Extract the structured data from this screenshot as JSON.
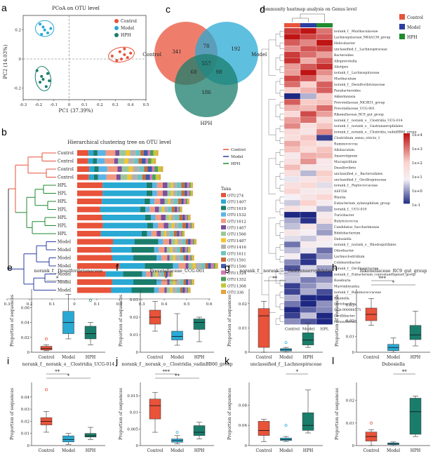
{
  "colors": {
    "Control": "#e8533a",
    "Model": "#29a9d4",
    "HPH": "#1a7d6b"
  },
  "panels": {
    "a": {
      "label": "a",
      "title": "PCoA on OTU level",
      "xlabel": "PC1 (37.39%)",
      "ylabel": "PC2 (14.03%)",
      "legend": [
        "Control",
        "Model",
        "HPH"
      ],
      "xticks": [
        "-0.3",
        "-0.2",
        "-0.1",
        "0",
        "0.1",
        "0.2",
        "0.3",
        "0.4",
        "0.5"
      ],
      "yticks": [
        "0.2",
        "0",
        "-0.2"
      ],
      "points": {
        "Control": [
          [
            0.28,
            0.02
          ],
          [
            0.33,
            0.05
          ],
          [
            0.36,
            0.03
          ],
          [
            0.31,
            -0.01
          ],
          [
            0.38,
            0.01
          ],
          [
            0.34,
            0.0
          ],
          [
            0.4,
            0.04
          ],
          [
            0.36,
            0.07
          ]
        ],
        "Model": [
          [
            -0.19,
            0.24
          ],
          [
            -0.16,
            0.2
          ],
          [
            -0.14,
            0.18
          ],
          [
            -0.18,
            0.17
          ],
          [
            -0.12,
            0.21
          ],
          [
            -0.17,
            0.22
          ]
        ],
        "HPH": [
          [
            -0.21,
            -0.08
          ],
          [
            -0.18,
            -0.12
          ],
          [
            -0.14,
            -0.1
          ],
          [
            -0.19,
            -0.16
          ],
          [
            -0.15,
            -0.19
          ],
          [
            -0.17,
            -0.14
          ],
          [
            -0.13,
            -0.15
          ]
        ]
      }
    },
    "b": {
      "label": "b",
      "title": "Hierarchical clustering tree on OTU level",
      "samples": [
        "Control",
        "Control",
        "Control",
        "Control",
        "HPL",
        "HPL",
        "HPL",
        "HPL",
        "HPL",
        "HPL",
        "HPL",
        "Model",
        "Model",
        "Model",
        "Model",
        "Model",
        "Model",
        "Model"
      ],
      "legend_groups": [
        "Control",
        "Model",
        "HPH"
      ],
      "taxa_title": "Taxa",
      "taxa": [
        "OTU274",
        "OTU1407",
        "OTU1619",
        "OTU1532",
        "OTU1612",
        "OTU1467",
        "OTU1566",
        "OTU1487",
        "OTU1416",
        "OTU1611",
        "OTU1591",
        "OTU1590",
        "OTU1324",
        "OTU1352",
        "OTU1368",
        "OTU336"
      ],
      "taxa_colors": [
        "#e8533a",
        "#29a9d4",
        "#1a7d6b",
        "#5ab4e8",
        "#f09a82",
        "#7b4fa0",
        "#9ac79a",
        "#f4c430",
        "#b0b0b0",
        "#6fc3c0",
        "#c76b3a",
        "#3f5aa8",
        "#d67ab1",
        "#4b9e5c",
        "#c2c73d",
        "#e6a23c"
      ],
      "xticks": [
        "0.3",
        "0.2",
        "0.1",
        "0",
        "0.1",
        "0.2",
        "0.3",
        "0.4",
        "0.5",
        "0.6"
      ]
    },
    "c": {
      "label": "c",
      "sets": [
        "Control",
        "Model",
        "HPH"
      ],
      "only_control": 341,
      "only_model": 192,
      "only_hph": 186,
      "control_model": 78,
      "control_hph": 68,
      "model_hph": 98,
      "all": 557
    },
    "d": {
      "label": "d",
      "title": "Community heatmap analysis on Genus level",
      "groups": [
        "Control",
        "Model",
        "HPL"
      ],
      "legend_groups": [
        "Control",
        "Model",
        "HPH"
      ],
      "scale": [
        "1e+4",
        "1e+3",
        "1e+2",
        "1e+1",
        "1e+0",
        "1e-1"
      ],
      "genera": [
        "norank_f__Muribaculaceae",
        "Lachnospiraceae_NK4A136_group",
        "Helicobacter",
        "unclassified_f__Lachnospiraceae",
        "Bacteroides",
        "Alloprevotella",
        "Alistipes",
        "norank_f__Lachnospiraceae",
        "Muribaculum",
        "norank_f__Desulfovibrionaceae",
        "Parabacteroides",
        "Akkermansia",
        "Prevotellaceae_NK3B31_group",
        "Prevotellaceae_UCG-001",
        "Rikenellaceae_RC9_gut_group",
        "norank_f__norank_o__Clostridia_UCG-014",
        "norank_f__norank_o__Gastranaerophilales",
        "norank_f__norank_o__Clostridia_vadinBB60_group",
        "Clostridium_sensu_stricto_1",
        "Ruminococcus",
        "Allobaculum",
        "Anaerotignum",
        "Mucispirillum",
        "Desulfovibrio",
        "unclassified_o__Bacteroidales",
        "unclassified_f__Oscillospiraceae",
        "norank_f__Peptococcaceae",
        "ASF356",
        "Blautia",
        "Eubacterium_xylanophilum_group",
        "norank_f__UCG-010",
        "Turicibacter",
        "Butyricicoccus",
        "Candidatus_Saccharimonas",
        "Bifidobacterium",
        "Dubosiella",
        "norank_f__norank_o__Rhodospirillales",
        "Odoribacter",
        "Lachnoclostridium",
        "Colidextribacter",
        "norank_f__Oscillospiraceae",
        "norank_f__Eubacterium_coprostanoligenes_group",
        "Roseburia",
        "Marvinbryantia",
        "norank_f__Ruminococcaceae",
        "Rikenella",
        "Lactobacillus",
        "GCA-900066575",
        "Oscillibacter",
        "Parasutterella"
      ]
    },
    "boxes": [
      {
        "label": "e",
        "title": "norank_f__Desulfovibrionaceae",
        "ylabel": "Proportion of sequences",
        "yticks": [
          "0",
          "0.02",
          "0.04",
          "0.06"
        ],
        "ymax": 0.085,
        "stats": [
          {
            "group": "Control",
            "min": 0.002,
            "q1": 0.003,
            "med": 0.005,
            "q3": 0.008,
            "max": 0.01,
            "out": [
              0.018
            ]
          },
          {
            "group": "Model",
            "min": 0.018,
            "q1": 0.025,
            "med": 0.04,
            "q3": 0.055,
            "max": 0.078,
            "out": []
          },
          {
            "group": "HPH",
            "min": 0.01,
            "q1": 0.018,
            "med": 0.025,
            "q3": 0.035,
            "max": 0.04,
            "out": [
              0.07
            ]
          }
        ],
        "sig": [
          {
            "a": 0,
            "b": 1,
            "text": "*"
          }
        ]
      },
      {
        "label": "f",
        "title": "Prevotellaceae_UCG-001",
        "ylabel": "Proportion of sequences",
        "yticks": [
          "0",
          "0.01",
          "0.02",
          "0.03"
        ],
        "ymax": 0.036,
        "stats": [
          {
            "group": "Control",
            "min": 0.012,
            "q1": 0.016,
            "med": 0.02,
            "q3": 0.024,
            "max": 0.029,
            "out": []
          },
          {
            "group": "Model",
            "min": 0.004,
            "q1": 0.007,
            "med": 0.009,
            "q3": 0.012,
            "max": 0.022,
            "out": []
          },
          {
            "group": "HPH",
            "min": 0.006,
            "q1": 0.013,
            "med": 0.017,
            "q3": 0.019,
            "max": 0.02,
            "out": []
          }
        ],
        "sig": [
          {
            "a": 0,
            "b": 1,
            "text": "*"
          }
        ]
      },
      {
        "label": "g",
        "title": "norank_f__norank_o__Gastranaerophilales",
        "ylabel": "Proportion of sequences",
        "yticks": [
          "0",
          "0.01",
          "0.02"
        ],
        "ymax": 0.026,
        "stats": [
          {
            "group": "Control",
            "min": 0.0,
            "q1": 0.002,
            "med": 0.015,
            "q3": 0.018,
            "max": 0.021,
            "out": []
          },
          {
            "group": "Model",
            "min": 0.0,
            "q1": 0.0005,
            "med": 0.001,
            "q3": 0.0015,
            "max": 0.002,
            "out": [
              0.004
            ]
          },
          {
            "group": "HPH",
            "min": 0.002,
            "q1": 0.003,
            "med": 0.005,
            "q3": 0.008,
            "max": 0.012,
            "out": []
          }
        ],
        "sig": [
          {
            "a": 0,
            "b": 1,
            "text": "**"
          }
        ]
      },
      {
        "label": "h",
        "title": "Rikenellaceae_RC9_gut_group",
        "ylabel": "Proportion of sequences",
        "yticks": [
          "0",
          "0.01",
          "0.02",
          "0.03"
        ],
        "ymax": 0.04,
        "stats": [
          {
            "group": "Control",
            "min": 0.017,
            "q1": 0.02,
            "med": 0.024,
            "q3": 0.028,
            "max": 0.034,
            "out": []
          },
          {
            "group": "Model",
            "min": 0.0,
            "q1": 0.001,
            "med": 0.003,
            "q3": 0.005,
            "max": 0.009,
            "out": []
          },
          {
            "group": "HPH",
            "min": 0.004,
            "q1": 0.008,
            "med": 0.011,
            "q3": 0.017,
            "max": 0.026,
            "out": []
          }
        ],
        "sig": [
          {
            "a": 0,
            "b": 1,
            "text": "***"
          },
          {
            "a": 0,
            "b": 2,
            "text": "*"
          }
        ]
      },
      {
        "label": "i",
        "title": "norank_f__norank_o__Clostridia_UCG-014",
        "ylabel": "Proportion of sequences",
        "yticks": [
          "0",
          "0.01",
          "0.02",
          "0.03",
          "0.04"
        ],
        "ymax": 0.052,
        "stats": [
          {
            "group": "Control",
            "min": 0.011,
            "q1": 0.017,
            "med": 0.02,
            "q3": 0.023,
            "max": 0.028,
            "out": [
              0.046
            ]
          },
          {
            "group": "Model",
            "min": 0.001,
            "q1": 0.003,
            "med": 0.005,
            "q3": 0.008,
            "max": 0.01,
            "out": []
          },
          {
            "group": "HPH",
            "min": 0.005,
            "q1": 0.007,
            "med": 0.008,
            "q3": 0.01,
            "max": 0.015,
            "out": []
          }
        ],
        "sig": [
          {
            "a": 0,
            "b": 1,
            "text": "**"
          },
          {
            "a": 0,
            "b": 2,
            "text": "*"
          }
        ]
      },
      {
        "label": "j",
        "title": "norank_f__norank_o__Clostridia_vadinBB60_group",
        "ylabel": "Proportion of sequences",
        "yticks": [
          "0",
          "0.005",
          "0.01",
          "0.015"
        ],
        "ymax": 0.019,
        "stats": [
          {
            "group": "Control",
            "min": 0.004,
            "q1": 0.008,
            "med": 0.012,
            "q3": 0.014,
            "max": 0.016,
            "out": []
          },
          {
            "group": "Model",
            "min": 0.0005,
            "q1": 0.001,
            "med": 0.0015,
            "q3": 0.002,
            "max": 0.003,
            "out": [
              0.004
            ]
          },
          {
            "group": "HPH",
            "min": 0.002,
            "q1": 0.003,
            "med": 0.004,
            "q3": 0.006,
            "max": 0.007,
            "out": []
          }
        ],
        "sig": [
          {
            "a": 0,
            "b": 1,
            "text": "***"
          },
          {
            "a": 0,
            "b": 2,
            "text": "**"
          }
        ]
      },
      {
        "label": "k",
        "title": "unclassified_f__Lachnospiraceae",
        "ylabel": "Proportion of sequences",
        "yticks": [
          "0",
          "0.04",
          "0.08"
        ],
        "ymax": 0.125,
        "stats": [
          {
            "group": "Control",
            "min": 0.008,
            "q1": 0.02,
            "med": 0.03,
            "q3": 0.048,
            "max": 0.052,
            "out": []
          },
          {
            "group": "Model",
            "min": 0.008,
            "q1": 0.01,
            "med": 0.012,
            "q3": 0.015,
            "max": 0.018,
            "out": [
              0.04
            ]
          },
          {
            "group": "HPH",
            "min": 0.025,
            "q1": 0.03,
            "med": 0.04,
            "q3": 0.065,
            "max": 0.11,
            "out": []
          }
        ],
        "sig": [
          {
            "a": 1,
            "b": 2,
            "text": "*"
          }
        ]
      },
      {
        "label": "l",
        "title": "Dubosiella",
        "ylabel": "Proportion of sequences",
        "yticks": [
          "0",
          "0.01",
          "0.02"
        ],
        "ymax": 0.028,
        "stats": [
          {
            "group": "Control",
            "min": 0.0,
            "q1": 0.002,
            "med": 0.004,
            "q3": 0.006,
            "max": 0.007,
            "out": [
              0.01
            ]
          },
          {
            "group": "Model",
            "min": 0.0,
            "q1": 0.0004,
            "med": 0.0008,
            "q3": 0.0012,
            "max": 0.0016,
            "out": []
          },
          {
            "group": "HPH",
            "min": 0.004,
            "q1": 0.005,
            "med": 0.015,
            "q3": 0.021,
            "max": 0.022,
            "out": []
          }
        ],
        "sig": [
          {
            "a": 1,
            "b": 2,
            "text": "**"
          }
        ]
      }
    ]
  },
  "chart_data": [
    {
      "type": "scatter",
      "title": "PCoA on OTU level",
      "xlabel": "PC1 (37.39%)",
      "ylabel": "PC2 (14.03%)",
      "xlim": [
        -0.3,
        0.5
      ],
      "ylim": [
        -0.28,
        0.3
      ],
      "series": [
        {
          "name": "Control",
          "x": [
            0.28,
            0.33,
            0.36,
            0.31,
            0.38,
            0.34,
            0.4,
            0.36
          ],
          "y": [
            0.02,
            0.05,
            0.03,
            -0.01,
            0.01,
            0.0,
            0.04,
            0.07
          ]
        },
        {
          "name": "Model",
          "x": [
            -0.19,
            -0.16,
            -0.14,
            -0.18,
            -0.12,
            -0.17
          ],
          "y": [
            0.24,
            0.2,
            0.18,
            0.17,
            0.21,
            0.22
          ]
        },
        {
          "name": "HPH",
          "x": [
            -0.21,
            -0.18,
            -0.14,
            -0.19,
            -0.15,
            -0.17,
            -0.13
          ],
          "y": [
            -0.08,
            -0.12,
            -0.1,
            -0.16,
            -0.19,
            -0.14,
            -0.15
          ]
        }
      ]
    },
    {
      "type": "bar",
      "title": "Hierarchical clustering tree on OTU level",
      "categories": [
        "Control",
        "Control",
        "Control",
        "Control",
        "HPL",
        "HPL",
        "HPL",
        "HPL",
        "HPL",
        "HPL",
        "HPL",
        "Model",
        "Model",
        "Model",
        "Model",
        "Model",
        "Model",
        "Model"
      ],
      "note": "stacked relative abundance of OTUs"
    },
    {
      "type": "table",
      "title": "Venn",
      "sets": [
        "Control",
        "Model",
        "HPH"
      ],
      "values": {
        "Control only": 341,
        "Model only": 192,
        "HPH only": 186,
        "Control∩Model": 78,
        "Control∩HPH": 68,
        "Model∩HPH": 98,
        "All": 557
      }
    },
    {
      "type": "heatmap",
      "title": "Community heatmap analysis on Genus level",
      "x": [
        "Control",
        "Model",
        "HPL"
      ]
    }
  ]
}
